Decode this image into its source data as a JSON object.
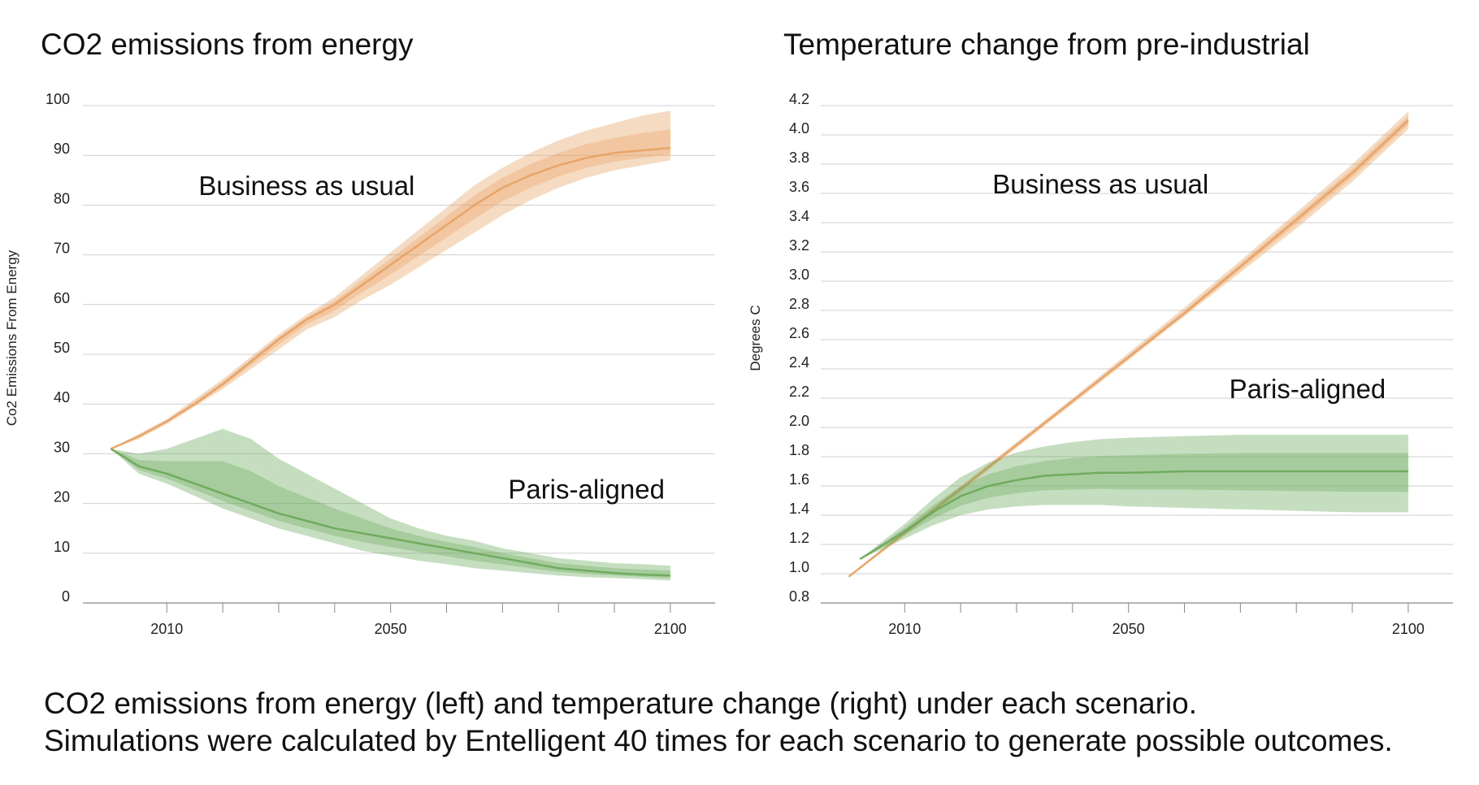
{
  "chart_data": [
    {
      "type": "area",
      "title": "CO2 emissions from energy",
      "ylabel": "Co2 Emissions From Energy",
      "xlabel": "",
      "xlim": [
        1995,
        2108
      ],
      "ylim": [
        0,
        100
      ],
      "x_ticks": [
        2010,
        2050,
        2100
      ],
      "y_ticks": [
        0,
        10,
        20,
        30,
        40,
        50,
        60,
        70,
        80,
        90,
        100
      ],
      "grid": true,
      "series": [
        {
          "name": "Business as usual",
          "color": "#e8a060",
          "x": [
            2000,
            2005,
            2010,
            2015,
            2020,
            2025,
            2030,
            2035,
            2040,
            2045,
            2050,
            2055,
            2060,
            2065,
            2070,
            2075,
            2080,
            2085,
            2090,
            2095,
            2100
          ],
          "low": [
            31,
            33,
            36,
            39.5,
            43,
            47,
            51,
            55,
            57.5,
            61,
            64,
            67.5,
            71,
            74.5,
            78,
            81,
            83.5,
            85.5,
            87,
            88,
            89
          ],
          "mid": [
            31,
            33.5,
            36.5,
            40,
            44,
            48.5,
            53,
            57,
            60,
            64,
            68,
            72,
            76,
            80,
            83.5,
            86,
            88,
            89.5,
            90.5,
            91,
            91.5
          ],
          "high": [
            31,
            34,
            37,
            41,
            45,
            49.5,
            54,
            58,
            61.5,
            66,
            70.5,
            75,
            79.5,
            84,
            87.5,
            90.5,
            93,
            95,
            96.5,
            98,
            99
          ],
          "label_position": [
            2035,
            82
          ]
        },
        {
          "name": "Paris-aligned",
          "color": "#6aa85a",
          "x": [
            2000,
            2005,
            2010,
            2015,
            2020,
            2025,
            2030,
            2035,
            2040,
            2045,
            2050,
            2055,
            2060,
            2065,
            2070,
            2075,
            2080,
            2085,
            2090,
            2095,
            2100
          ],
          "low": [
            31,
            26,
            24,
            21.5,
            19,
            17,
            15,
            13.5,
            12,
            10.5,
            9.5,
            8.5,
            7.8,
            7,
            6.5,
            6,
            5.5,
            5.2,
            5,
            4.8,
            4.5
          ],
          "mid": [
            31,
            27.5,
            26,
            24,
            22,
            20,
            18,
            16.5,
            15,
            14,
            13,
            12,
            11,
            10,
            9,
            8,
            7,
            6.5,
            6,
            5.7,
            5.5
          ],
          "high": [
            31,
            30,
            31,
            33,
            35,
            33,
            29,
            26,
            23,
            20,
            17,
            15,
            13.5,
            12.5,
            11,
            10,
            9,
            8.5,
            8,
            7.8,
            7.5
          ],
          "label_position": [
            2085,
            21
          ]
        }
      ]
    },
    {
      "type": "area",
      "title": "Temperature change from pre-industrial",
      "ylabel": "Degrees C",
      "xlabel": "",
      "xlim": [
        1995,
        2108
      ],
      "ylim": [
        0.8,
        4.2
      ],
      "x_ticks": [
        2010,
        2050,
        2100
      ],
      "y_ticks": [
        0.8,
        1.0,
        1.2,
        1.4,
        1.6,
        1.8,
        2.0,
        2.2,
        2.4,
        2.6,
        2.8,
        3.0,
        3.2,
        3.4,
        3.6,
        3.8,
        4.0,
        4.2
      ],
      "grid": true,
      "series": [
        {
          "name": "Business as usual",
          "color": "#e8a060",
          "x": [
            2000,
            2010,
            2020,
            2030,
            2040,
            2050,
            2060,
            2070,
            2080,
            2090,
            2100
          ],
          "low": [
            0.98,
            1.26,
            1.56,
            1.86,
            2.16,
            2.46,
            2.76,
            3.06,
            3.36,
            3.68,
            4.04
          ],
          "mid": [
            0.98,
            1.28,
            1.58,
            1.88,
            2.18,
            2.48,
            2.78,
            3.1,
            3.42,
            3.74,
            4.1
          ],
          "high": [
            0.98,
            1.3,
            1.6,
            1.9,
            2.2,
            2.51,
            2.82,
            3.14,
            3.47,
            3.8,
            4.16
          ],
          "label_position": [
            2045,
            3.6
          ]
        },
        {
          "name": "Paris-aligned",
          "color": "#6aa85a",
          "x": [
            2002,
            2005,
            2010,
            2015,
            2020,
            2025,
            2030,
            2035,
            2040,
            2045,
            2050,
            2060,
            2070,
            2080,
            2090,
            2100
          ],
          "low": [
            1.1,
            1.15,
            1.24,
            1.33,
            1.4,
            1.44,
            1.46,
            1.47,
            1.47,
            1.47,
            1.46,
            1.45,
            1.44,
            1.43,
            1.42,
            1.42
          ],
          "mid": [
            1.1,
            1.17,
            1.29,
            1.42,
            1.53,
            1.6,
            1.64,
            1.67,
            1.68,
            1.69,
            1.69,
            1.7,
            1.7,
            1.7,
            1.7,
            1.7
          ],
          "high": [
            1.1,
            1.19,
            1.34,
            1.51,
            1.66,
            1.76,
            1.83,
            1.87,
            1.9,
            1.92,
            1.93,
            1.94,
            1.95,
            1.95,
            1.95,
            1.95
          ],
          "label_position": [
            2082,
            2.2
          ]
        }
      ]
    }
  ],
  "caption": {
    "line1": "CO2 emissions from energy (left) and temperature change (right) under each scenario.",
    "line2": "Simulations were calculated by Entelligent 40 times for each scenario to generate possible outcomes."
  }
}
